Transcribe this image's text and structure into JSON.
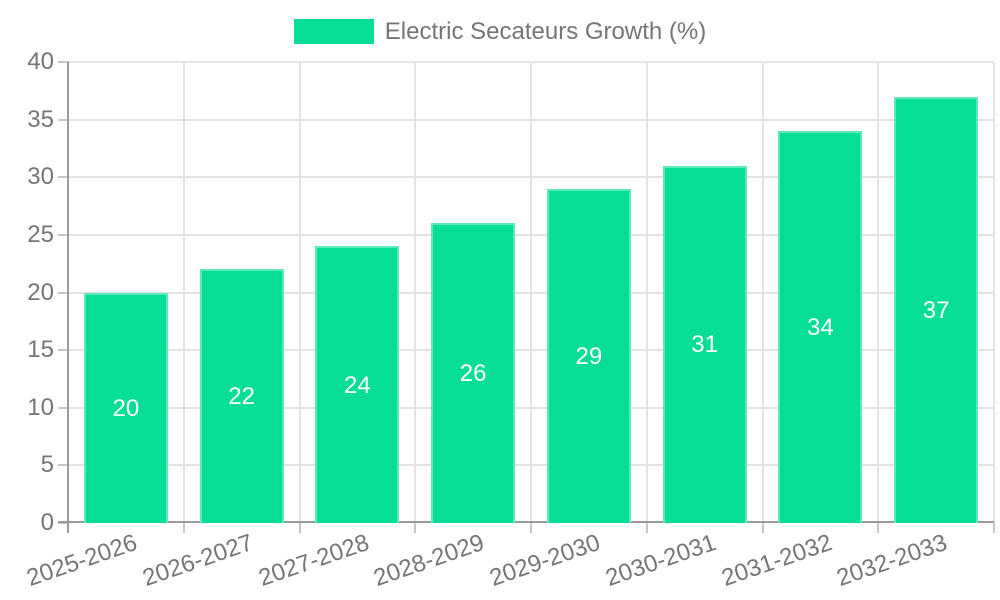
{
  "chart_data": {
    "type": "bar",
    "title": "Electric Secateurs Growth (%)",
    "legend": {
      "label": "Electric Secateurs Growth (%)",
      "position": "top"
    },
    "categories": [
      "2025-2026",
      "2026-2027",
      "2027-2028",
      "2028-2029",
      "2029-2030",
      "2030-2031",
      "2031-2032",
      "2032-2033"
    ],
    "values": [
      20,
      22,
      24,
      26,
      29,
      31,
      34,
      37
    ],
    "show_value_labels": true,
    "xlabel": "",
    "ylabel": "",
    "ylim": [
      0,
      40
    ],
    "yticks": [
      0,
      5,
      10,
      15,
      20,
      25,
      30,
      35,
      40
    ],
    "grid": true,
    "x_label_rotation_deg": -19,
    "colors": {
      "bar": "#07DE95",
      "bar_border": "rgba(255,255,255,0.35)",
      "value_label": "#ffffff",
      "grid": "#e3e3e3",
      "axis": "#9a9a9a",
      "tick": "#c6c6c6",
      "text": "#757575"
    }
  }
}
